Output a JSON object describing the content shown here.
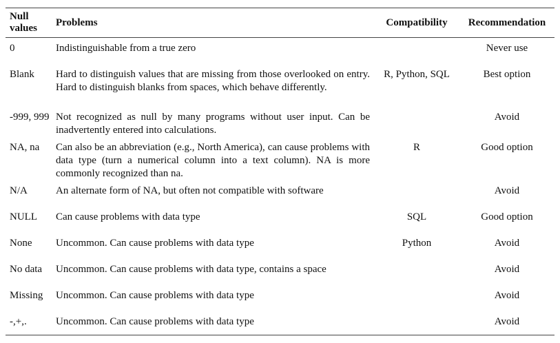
{
  "headers": {
    "null_values": "Null values",
    "problems": "Problems",
    "compatibility": "Compatibility",
    "recommendation": "Recommendation"
  },
  "rows": [
    {
      "null_value": "0",
      "problems": "Indistinguishable from a true zero",
      "compatibility": "",
      "recommendation": "Never use"
    },
    {
      "null_value": "Blank",
      "problems": "Hard to distinguish values that are missing from those overlooked on entry. Hard to distinguish blanks from spaces, which behave differently.",
      "compatibility": "R, Python, SQL",
      "recommendation": "Best option"
    },
    {
      "null_value": "-999, 999",
      "problems": "Not recognized as null by many programs without user input. Can be inadvertently entered into calculations.",
      "compatibility": "",
      "recommendation": "Avoid"
    },
    {
      "null_value": "NA, na",
      "problems": "Can also be an abbreviation (e.g., North America), can cause problems with data type (turn a numerical column into a text column). NA is more commonly recognized than na.",
      "compatibility": "R",
      "recommendation": "Good option"
    },
    {
      "null_value": "N/A",
      "problems": "An alternate form of NA, but often not compatible with software",
      "compatibility": "",
      "recommendation": "Avoid"
    },
    {
      "null_value": "NULL",
      "problems": "Can cause problems with data type",
      "compatibility": "SQL",
      "recommendation": "Good option"
    },
    {
      "null_value": "None",
      "problems": "Uncommon. Can cause problems with data type",
      "compatibility": "Python",
      "recommendation": "Avoid"
    },
    {
      "null_value": "No data",
      "problems": "Uncommon. Can cause problems with data type, contains a space",
      "compatibility": "",
      "recommendation": "Avoid"
    },
    {
      "null_value": "Missing",
      "problems": "Uncommon. Can cause problems with data type",
      "compatibility": "",
      "recommendation": "Avoid"
    },
    {
      "null_value": "-,+,.",
      "problems": "Uncommon. Can cause problems with data type",
      "compatibility": "",
      "recommendation": "Avoid"
    }
  ]
}
